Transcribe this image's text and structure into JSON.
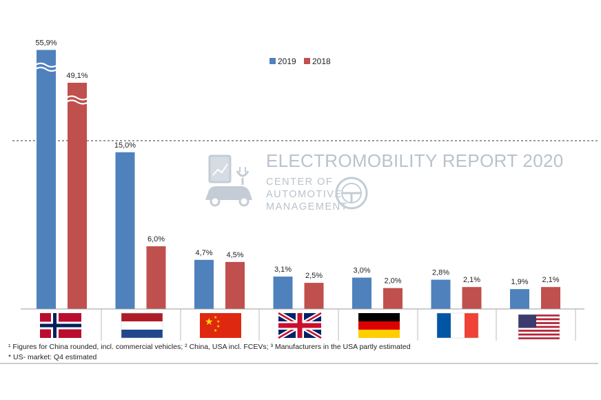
{
  "chart_data": {
    "type": "bar",
    "categories": [
      "Norway",
      "Netherlands",
      "China",
      "United Kingdom",
      "Germany",
      "France",
      "USA"
    ],
    "series": [
      {
        "name": "2019",
        "color": "#4f81bd",
        "values": [
          55.9,
          15.0,
          4.7,
          3.1,
          3.0,
          2.8,
          1.9
        ],
        "labels": [
          "55,9%",
          "15,0%",
          "4,7%",
          "3,1%",
          "3,0%",
          "2,8%",
          "1,9%"
        ]
      },
      {
        "name": "2018",
        "color": "#c0504d",
        "values": [
          49.1,
          6.0,
          4.5,
          2.5,
          2.0,
          2.1,
          2.1
        ],
        "labels": [
          "49,1%",
          "6,0%",
          "4,5%",
          "2,5%",
          "2,0%",
          "2,1%",
          "2,1%"
        ]
      }
    ],
    "axis_break": true,
    "legend_position": "top-center",
    "grid": false
  },
  "flags": [
    "norway-flag-icon",
    "netherlands-flag-icon",
    "china-flag-icon",
    "uk-flag-icon",
    "germany-flag-icon",
    "france-flag-icon",
    "usa-flag-icon"
  ],
  "watermark": {
    "title": "ELECTROMOBILITY REPORT 2020",
    "line1": "CENTER OF",
    "line2": "AUTOMOTIVE",
    "line3": "MANAGEMENT"
  },
  "footnotes": {
    "line1": "¹ Figures for China rounded, incl. commercial vehicles; ² China, USA incl. FCEVs; ³ Manufacturers in the USA partly estimated",
    "line2": "* US- market: Q4 estimated"
  }
}
